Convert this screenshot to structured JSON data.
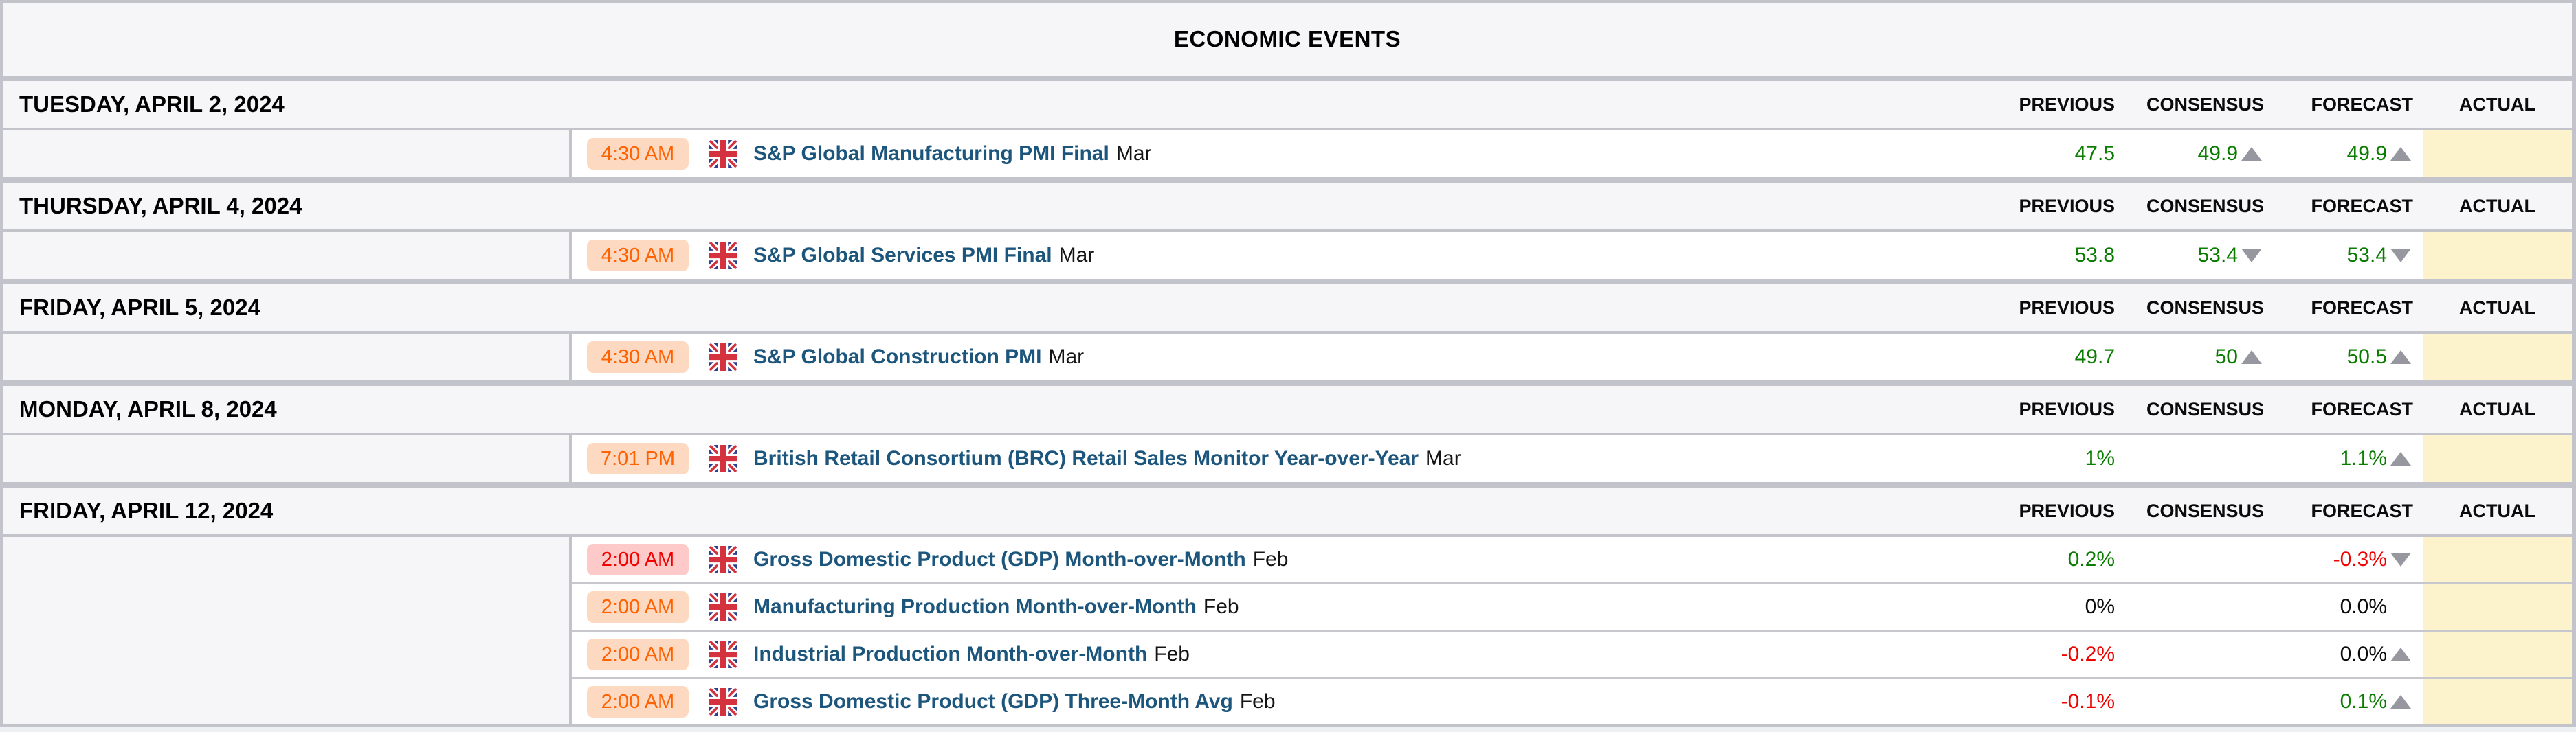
{
  "title": "ECONOMIC EVENTS",
  "columns": [
    "PREVIOUS",
    "CONSENSUS",
    "FORECAST",
    "ACTUAL"
  ],
  "colors": {
    "border": "#c3c3cc",
    "panel": "#f6f6f8",
    "green": "#0a7c00",
    "red": "#f10000",
    "event": "#1d567d",
    "actual": "#fcf3cd",
    "arrow": "#97979f",
    "badge-med-bg": "#fdd9c2",
    "badge-med-fg": "#ff6200",
    "badge-high-bg": "#fdc9c9",
    "badge-high-fg": "#f20000"
  },
  "sections": [
    {
      "date": "TUESDAY, APRIL 2, 2024",
      "events": [
        {
          "time": "4:30 AM",
          "importance": "medium",
          "country": "united-kingdom",
          "title": "S&P Global Manufacturing PMI Final",
          "period": "Mar",
          "previous": {
            "text": "47.5",
            "color": "green"
          },
          "consensus": {
            "text": "49.9",
            "color": "green",
            "arrow": "up"
          },
          "forecast": {
            "text": "49.9",
            "color": "green",
            "arrow": "up"
          },
          "actual": {
            "text": ""
          }
        }
      ]
    },
    {
      "date": "THURSDAY, APRIL 4, 2024",
      "events": [
        {
          "time": "4:30 AM",
          "importance": "medium",
          "country": "united-kingdom",
          "title": "S&P Global Services PMI Final",
          "period": "Mar",
          "previous": {
            "text": "53.8",
            "color": "green"
          },
          "consensus": {
            "text": "53.4",
            "color": "green",
            "arrow": "down"
          },
          "forecast": {
            "text": "53.4",
            "color": "green",
            "arrow": "down"
          },
          "actual": {
            "text": ""
          }
        }
      ]
    },
    {
      "date": "FRIDAY, APRIL 5, 2024",
      "events": [
        {
          "time": "4:30 AM",
          "importance": "medium",
          "country": "united-kingdom",
          "title": "S&P Global Construction PMI",
          "period": "Mar",
          "previous": {
            "text": "49.7",
            "color": "green"
          },
          "consensus": {
            "text": "50",
            "color": "green",
            "arrow": "up"
          },
          "forecast": {
            "text": "50.5",
            "color": "green",
            "arrow": "up"
          },
          "actual": {
            "text": ""
          }
        }
      ]
    },
    {
      "date": "MONDAY, APRIL 8, 2024",
      "events": [
        {
          "time": "7:01 PM",
          "importance": "medium",
          "country": "united-kingdom",
          "title": "British Retail Consortium (BRC) Retail Sales Monitor Year-over-Year",
          "period": "Mar",
          "previous": {
            "text": "1%",
            "color": "green"
          },
          "consensus": {
            "text": "",
            "color": "black"
          },
          "forecast": {
            "text": "1.1%",
            "color": "green",
            "arrow": "up"
          },
          "actual": {
            "text": ""
          }
        }
      ]
    },
    {
      "date": "FRIDAY, APRIL 12, 2024",
      "events": [
        {
          "time": "2:00 AM",
          "importance": "high",
          "country": "united-kingdom",
          "title": "Gross Domestic Product (GDP) Month-over-Month",
          "period": "Feb",
          "previous": {
            "text": "0.2%",
            "color": "green"
          },
          "consensus": {
            "text": "",
            "color": "black"
          },
          "forecast": {
            "text": "-0.3%",
            "color": "red",
            "arrow": "down"
          },
          "actual": {
            "text": ""
          }
        },
        {
          "time": "2:00 AM",
          "importance": "medium",
          "country": "united-kingdom",
          "title": "Manufacturing Production Month-over-Month",
          "period": "Feb",
          "previous": {
            "text": "0%",
            "color": "black"
          },
          "consensus": {
            "text": "",
            "color": "black"
          },
          "forecast": {
            "text": "0.0%",
            "color": "black"
          },
          "actual": {
            "text": ""
          }
        },
        {
          "time": "2:00 AM",
          "importance": "medium",
          "country": "united-kingdom",
          "title": "Industrial Production Month-over-Month",
          "period": "Feb",
          "previous": {
            "text": "-0.2%",
            "color": "red"
          },
          "consensus": {
            "text": "",
            "color": "black"
          },
          "forecast": {
            "text": "0.0%",
            "color": "black",
            "arrow": "up"
          },
          "actual": {
            "text": ""
          }
        },
        {
          "time": "2:00 AM",
          "importance": "medium",
          "country": "united-kingdom",
          "title": "Gross Domestic Product (GDP) Three-Month Avg",
          "period": "Feb",
          "previous": {
            "text": "-0.1%",
            "color": "red"
          },
          "consensus": {
            "text": "",
            "color": "black"
          },
          "forecast": {
            "text": "0.1%",
            "color": "green",
            "arrow": "up"
          },
          "actual": {
            "text": ""
          }
        }
      ]
    }
  ]
}
